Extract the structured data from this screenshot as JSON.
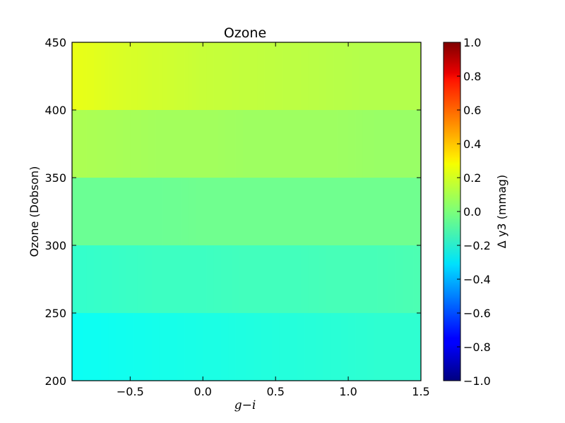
{
  "chart_data": {
    "type": "heatmap",
    "title": "Ozone",
    "xlabel": "g−i",
    "ylabel": "Ozone (Dobson)",
    "colorbar_label": "Δ y3 (mmag)",
    "xlim": [
      -0.9,
      1.5
    ],
    "ylim": [
      200,
      450
    ],
    "x_ticks": [
      -0.5,
      0.0,
      0.5,
      1.0,
      1.5
    ],
    "x_tick_labels": [
      "−0.5",
      "0.0",
      "0.5",
      "1.0",
      "1.5"
    ],
    "y_ticks": [
      200,
      250,
      300,
      350,
      400,
      450
    ],
    "y_tick_labels": [
      "200",
      "250",
      "300",
      "350",
      "400",
      "450"
    ],
    "colorbar_range": [
      -1.0,
      1.0
    ],
    "colorbar_ticks": [
      -1.0,
      -0.8,
      -0.6,
      -0.4,
      -0.2,
      0.0,
      0.2,
      0.4,
      0.6,
      0.8,
      1.0
    ],
    "colorbar_tick_labels": [
      "−1.0",
      "−0.8",
      "−0.6",
      "−0.4",
      "−0.2",
      "0.0",
      "0.2",
      "0.4",
      "0.6",
      "0.8",
      "1.0"
    ],
    "colormap": "jet",
    "y_bins": [
      [
        200,
        250
      ],
      [
        250,
        300
      ],
      [
        300,
        350
      ],
      [
        350,
        400
      ],
      [
        400,
        450
      ]
    ],
    "x_grid": [
      -0.9,
      -0.6,
      -0.3,
      0.0,
      0.3,
      0.6,
      0.9,
      1.2,
      1.5
    ],
    "values": [
      [
        -0.23,
        -0.22,
        -0.21,
        -0.2,
        -0.19,
        -0.18,
        -0.17,
        -0.16,
        -0.16
      ],
      [
        -0.15,
        -0.14,
        -0.13,
        -0.13,
        -0.12,
        -0.12,
        -0.11,
        -0.11,
        -0.1
      ],
      [
        -0.04,
        -0.04,
        -0.04,
        -0.03,
        -0.03,
        -0.03,
        -0.03,
        -0.03,
        -0.03
      ],
      [
        0.09,
        0.08,
        0.07,
        0.07,
        0.06,
        0.06,
        0.06,
        0.05,
        0.05
      ],
      [
        0.21,
        0.18,
        0.16,
        0.14,
        0.13,
        0.12,
        0.11,
        0.1,
        0.1
      ]
    ]
  }
}
